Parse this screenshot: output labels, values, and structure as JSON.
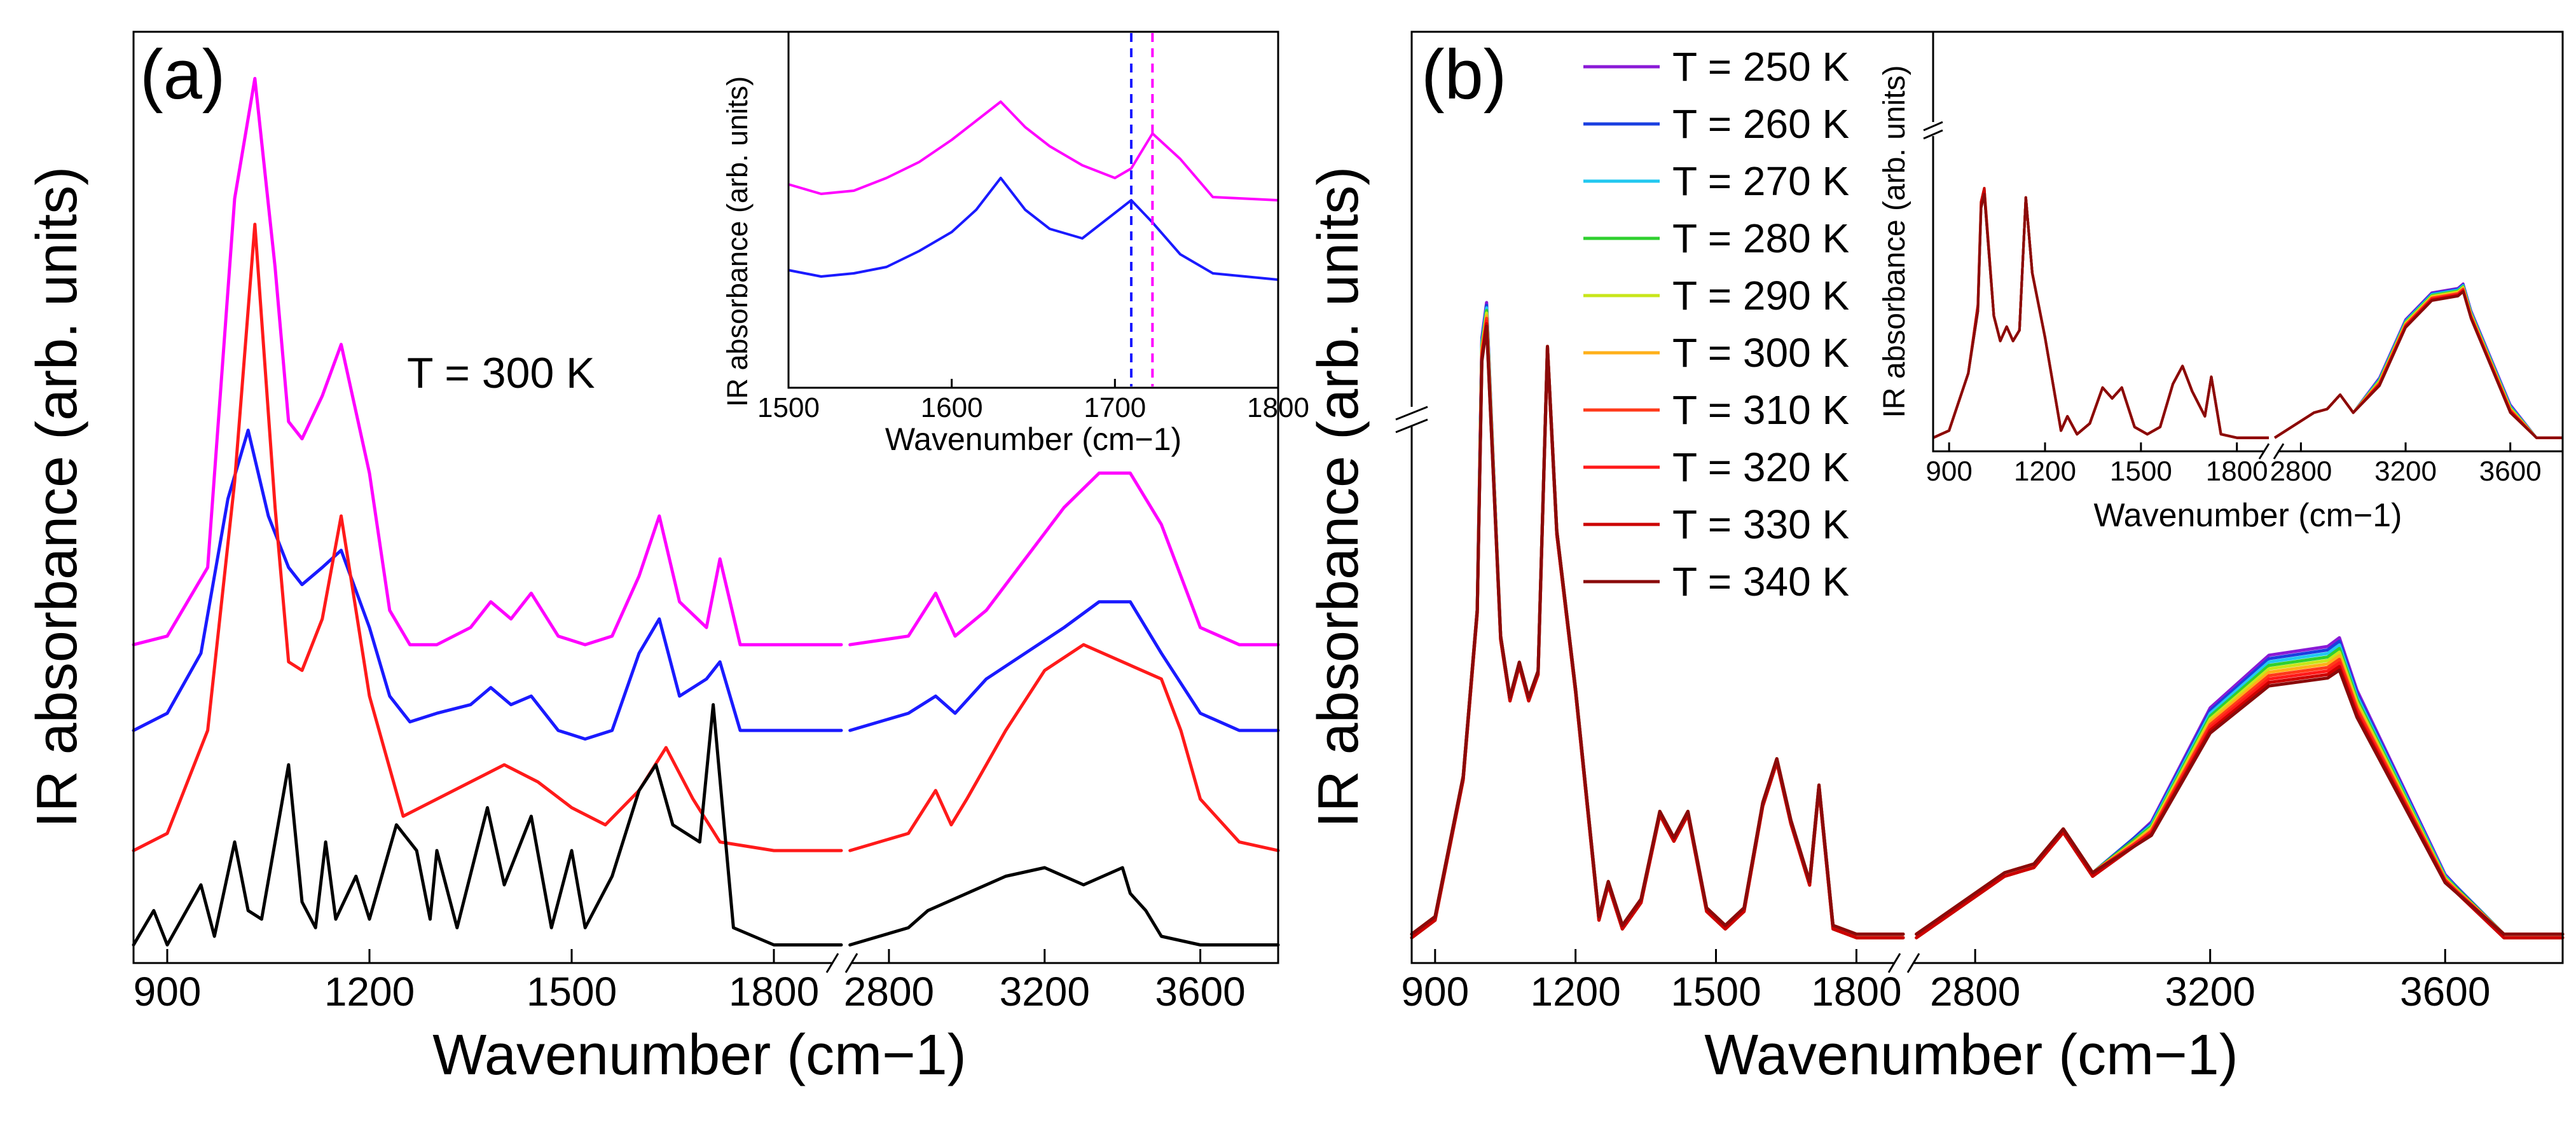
{
  "chart_data": [
    {
      "type": "line",
      "panel_label": "(a)",
      "annotation": "T = 300 K",
      "xlabel": "Wavenumber (cm−1)",
      "ylabel": "IR absorbance (arb. units)",
      "x_break": [
        1900,
        2700
      ],
      "xlim": [
        850,
        3800
      ],
      "ylim": [
        0,
        10.3
      ],
      "x_ticks": [
        "900",
        "1200",
        "1500",
        "1800",
        "2800",
        "3200",
        "3600"
      ],
      "x_tick_values": [
        900,
        1200,
        1500,
        1800,
        2800,
        3200,
        3600
      ],
      "series": [
        {
          "name": "magenta",
          "color": "#ff00ff",
          "x": [
            850,
            900,
            960,
            1000,
            1030,
            1060,
            1080,
            1100,
            1130,
            1158,
            1200,
            1230,
            1260,
            1300,
            1350,
            1380,
            1410,
            1440,
            1480,
            1520,
            1560,
            1600,
            1630,
            1660,
            1700,
            1720,
            1750,
            1800,
            1900,
            2700,
            2850,
            2920,
            2970,
            3050,
            3150,
            3250,
            3340,
            3420,
            3500,
            3600,
            3700,
            3800
          ],
          "y": [
            3.6,
            3.7,
            4.5,
            8.8,
            10.2,
            8.0,
            6.2,
            6.0,
            6.5,
            7.1,
            5.6,
            4.0,
            3.6,
            3.6,
            3.8,
            4.1,
            3.9,
            4.2,
            3.7,
            3.6,
            3.7,
            4.4,
            5.1,
            4.1,
            3.8,
            4.6,
            3.6,
            3.6,
            3.6,
            3.6,
            3.7,
            4.2,
            3.7,
            4.0,
            4.6,
            5.2,
            5.6,
            5.6,
            5.0,
            3.8,
            3.6,
            3.6
          ]
        },
        {
          "name": "blue",
          "color": "#1a1aff",
          "x": [
            850,
            900,
            950,
            990,
            1020,
            1050,
            1080,
            1100,
            1130,
            1158,
            1200,
            1230,
            1260,
            1300,
            1350,
            1380,
            1410,
            1440,
            1480,
            1520,
            1560,
            1600,
            1630,
            1660,
            1700,
            1720,
            1750,
            1800,
            1900,
            2700,
            2850,
            2920,
            2970,
            3050,
            3150,
            3250,
            3340,
            3420,
            3500,
            3600,
            3700,
            3800
          ],
          "y": [
            2.6,
            2.8,
            3.5,
            5.3,
            6.1,
            5.1,
            4.5,
            4.3,
            4.5,
            4.7,
            3.8,
            3.0,
            2.7,
            2.8,
            2.9,
            3.1,
            2.9,
            3.0,
            2.6,
            2.5,
            2.6,
            3.5,
            3.9,
            3.0,
            3.2,
            3.4,
            2.6,
            2.6,
            2.6,
            2.6,
            2.8,
            3.0,
            2.8,
            3.2,
            3.5,
            3.8,
            4.1,
            4.1,
            3.5,
            2.8,
            2.6,
            2.6
          ]
        },
        {
          "name": "red",
          "color": "#ff1a1a",
          "x": [
            850,
            900,
            960,
            1000,
            1030,
            1060,
            1080,
            1100,
            1130,
            1158,
            1200,
            1250,
            1300,
            1350,
            1400,
            1450,
            1500,
            1550,
            1600,
            1640,
            1680,
            1720,
            1800,
            1900,
            2700,
            2850,
            2920,
            2960,
            3000,
            3100,
            3200,
            3300,
            3400,
            3500,
            3550,
            3600,
            3700,
            3800
          ],
          "y": [
            1.2,
            1.4,
            2.6,
            5.5,
            8.5,
            5.2,
            3.4,
            3.3,
            3.9,
            5.1,
            3.0,
            1.6,
            1.8,
            2.0,
            2.2,
            2.0,
            1.7,
            1.5,
            1.9,
            2.4,
            1.8,
            1.3,
            1.2,
            1.2,
            1.2,
            1.4,
            1.9,
            1.5,
            1.8,
            2.6,
            3.3,
            3.6,
            3.4,
            3.2,
            2.6,
            1.8,
            1.3,
            1.2
          ]
        },
        {
          "name": "black",
          "color": "#000000",
          "x": [
            850,
            880,
            900,
            950,
            970,
            1000,
            1020,
            1040,
            1080,
            1100,
            1120,
            1135,
            1150,
            1180,
            1200,
            1240,
            1270,
            1290,
            1300,
            1330,
            1375,
            1400,
            1440,
            1470,
            1500,
            1520,
            1560,
            1600,
            1625,
            1650,
            1690,
            1710,
            1740,
            1800,
            1900,
            2700,
            2850,
            2900,
            3000,
            3100,
            3200,
            3250,
            3300,
            3350,
            3400,
            3420,
            3460,
            3500,
            3600,
            3700,
            3800
          ],
          "y": [
            0.1,
            0.5,
            0.1,
            0.8,
            0.2,
            1.3,
            0.5,
            0.4,
            2.2,
            0.6,
            0.3,
            1.3,
            0.4,
            0.9,
            0.4,
            1.5,
            1.2,
            0.4,
            1.2,
            0.3,
            1.7,
            0.8,
            1.6,
            0.3,
            1.2,
            0.3,
            0.9,
            1.9,
            2.2,
            1.5,
            1.3,
            2.9,
            0.3,
            0.1,
            0.1,
            0.1,
            0.3,
            0.5,
            0.7,
            0.9,
            1.0,
            0.9,
            0.8,
            0.9,
            1.0,
            0.7,
            0.5,
            0.2,
            0.1,
            0.1,
            0.1
          ]
        }
      ],
      "inset": {
        "xlabel": "Wavenumber (cm−1)",
        "ylabel": "IR absorbance (arb. units)",
        "xlim": [
          1500,
          1800
        ],
        "ylim": [
          0,
          10
        ],
        "x_ticks": [
          "1500",
          "1600",
          "1700",
          "1800"
        ],
        "x_tick_values": [
          1500,
          1600,
          1700,
          1800
        ],
        "vlines": [
          {
            "x": 1710,
            "color": "#1a1aff"
          },
          {
            "x": 1723,
            "color": "#ff00ff"
          }
        ],
        "series": [
          {
            "name": "magenta",
            "color": "#ff00ff",
            "x": [
              1500,
              1520,
              1540,
              1560,
              1580,
              1600,
              1615,
              1630,
              1645,
              1660,
              1680,
              1700,
              1710,
              1723,
              1740,
              1760,
              1800
            ],
            "y": [
              5.8,
              5.5,
              5.6,
              6.0,
              6.5,
              7.2,
              7.8,
              8.4,
              7.6,
              7.0,
              6.4,
              6.0,
              6.3,
              7.4,
              6.6,
              5.4,
              5.3
            ]
          },
          {
            "name": "blue",
            "color": "#1a1aff",
            "x": [
              1500,
              1520,
              1540,
              1560,
              1580,
              1600,
              1615,
              1630,
              1645,
              1660,
              1680,
              1700,
              1710,
              1723,
              1740,
              1760,
              1800
            ],
            "y": [
              3.1,
              2.9,
              3.0,
              3.2,
              3.7,
              4.3,
              5.0,
              6.0,
              5.0,
              4.4,
              4.1,
              4.9,
              5.3,
              4.6,
              3.6,
              3.0,
              2.8
            ]
          }
        ]
      }
    },
    {
      "type": "line",
      "panel_label": "(b)",
      "xlabel": "Wavenumber (cm−1)",
      "ylabel": "IR absorbance (arb. units)",
      "x_break": [
        1900,
        2700
      ],
      "y_break": true,
      "xlim": [
        850,
        3800
      ],
      "ylim": [
        0,
        10
      ],
      "x_ticks": [
        "900",
        "1200",
        "1500",
        "1800",
        "2800",
        "3200",
        "3600"
      ],
      "x_tick_values": [
        900,
        1200,
        1500,
        1800,
        2800,
        3200,
        3600
      ],
      "legend": [
        "T = 250 K",
        "T = 260 K",
        "T = 270 K",
        "T = 280 K",
        "T = 290 K",
        "T = 300 K",
        "T = 310 K",
        "T = 320 K",
        "T = 330 K",
        "T = 340 K"
      ],
      "legend_colors": [
        "#8a1ad6",
        "#1a3fe0",
        "#22c8f0",
        "#2fd02f",
        "#c8e61a",
        "#ffb01a",
        "#ff3a1a",
        "#ff1a1a",
        "#cc0000",
        "#8a0a0a"
      ],
      "base_x": [
        850,
        900,
        960,
        990,
        1000,
        1010,
        1040,
        1060,
        1080,
        1100,
        1120,
        1140,
        1160,
        1200,
        1250,
        1270,
        1300,
        1340,
        1380,
        1410,
        1440,
        1480,
        1520,
        1560,
        1600,
        1630,
        1660,
        1700,
        1720,
        1750,
        1800,
        1900,
        2700,
        2850,
        2900,
        2950,
        3000,
        3100,
        3200,
        3300,
        3400,
        3420,
        3450,
        3500,
        3600,
        3700,
        3800
      ],
      "base_y": [
        0.2,
        0.4,
        2.0,
        3.9,
        6.9,
        7.3,
        3.6,
        2.9,
        3.3,
        2.9,
        3.2,
        6.9,
        4.8,
        3.0,
        0.4,
        0.8,
        0.3,
        0.6,
        1.6,
        1.3,
        1.6,
        0.5,
        0.3,
        0.5,
        1.7,
        2.2,
        1.5,
        0.8,
        1.9,
        0.3,
        0.2,
        0.2,
        0.2,
        0.9,
        1.0,
        1.4,
        0.9,
        1.5,
        2.8,
        3.4,
        3.5,
        3.6,
        3.0,
        2.3,
        0.9,
        0.2,
        0.2
      ],
      "temperatures": [
        250,
        260,
        270,
        280,
        290,
        300,
        310,
        320,
        330,
        340
      ],
      "inset": {
        "xlabel": "Wavenumber (cm−1)",
        "ylabel": "IR absorbance (arb. units)",
        "x_break": [
          1900,
          2700
        ],
        "y_break": true,
        "x_ticks": [
          "900",
          "1200",
          "1500",
          "1800",
          "2800",
          "3200",
          "3600"
        ],
        "x_tick_values": [
          900,
          1200,
          1500,
          1800,
          2800,
          3200,
          3600
        ]
      }
    }
  ]
}
